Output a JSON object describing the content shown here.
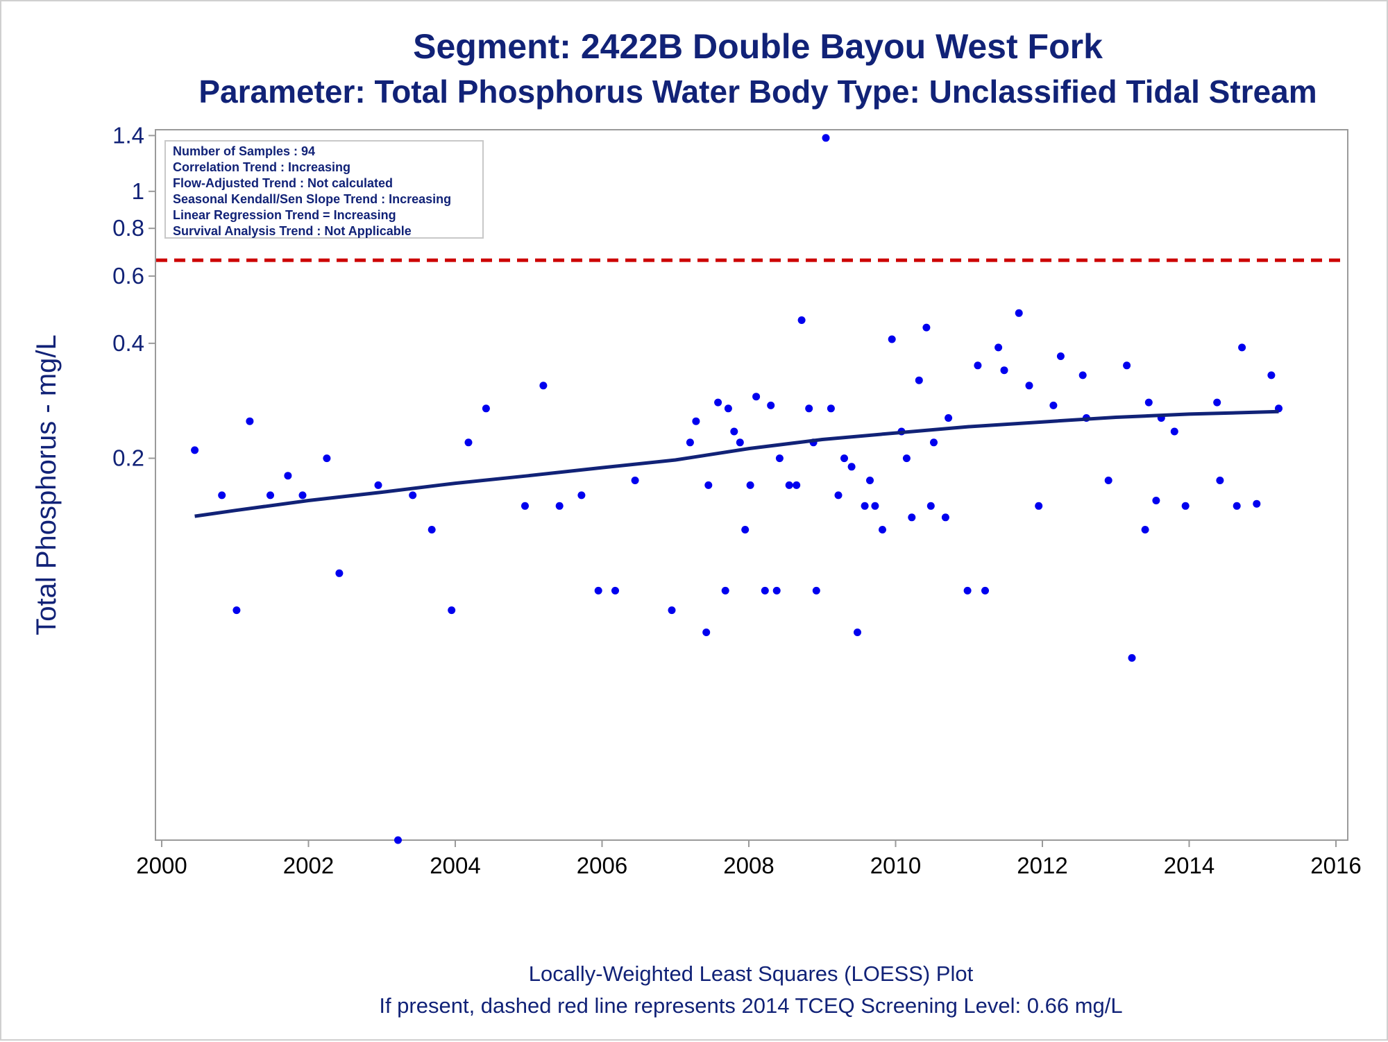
{
  "chart_data": {
    "type": "scatter",
    "title": "Segment: 2422B  Double Bayou West Fork",
    "subtitle": "Parameter: Total Phosphorus   Water Body Type: Unclassified Tidal Stream",
    "xlabel": "",
    "ylabel": "Total Phosphorus - mg/L",
    "xlim": [
      2000,
      2016
    ],
    "ylim": [
      0.02,
      1.45
    ],
    "yscale": "log",
    "xticks": [
      2000,
      2002,
      2004,
      2006,
      2008,
      2010,
      2012,
      2014,
      2016
    ],
    "yticks": [
      0.2,
      0.4,
      0.6,
      0.8,
      1,
      1.4
    ],
    "ytick_labels": [
      "0.2",
      "0.4",
      "0.6",
      "0.8",
      "1",
      "1.4"
    ],
    "grid": false,
    "colors": {
      "points": "#0000ee",
      "trend": "#112277",
      "screening": "#cc0000",
      "text": "#112277"
    },
    "info_box": {
      "placement": "top-left",
      "lines": [
        "Number of Samples : 94",
        "Correlation Trend : Increasing",
        "Flow-Adjusted Trend : Not calculated",
        "Seasonal Kendall/Sen Slope Trend : Increasing",
        "Linear Regression Trend = Increasing",
        "Survival Analysis Trend : Not Applicable"
      ]
    },
    "screening_level": {
      "y": 0.66,
      "style": "dashed"
    },
    "footnotes": [
      "Locally-Weighted Least Squares (LOESS) Plot",
      "If present, dashed red line represents 2014 TCEQ Screening Level: 0.66 mg/L"
    ],
    "points": [
      {
        "x": 2000.45,
        "y": 0.21
      },
      {
        "x": 2000.82,
        "y": 0.16
      },
      {
        "x": 2001.02,
        "y": 0.08
      },
      {
        "x": 2001.2,
        "y": 0.25
      },
      {
        "x": 2001.48,
        "y": 0.16
      },
      {
        "x": 2001.72,
        "y": 0.18
      },
      {
        "x": 2001.92,
        "y": 0.16
      },
      {
        "x": 2002.25,
        "y": 0.2
      },
      {
        "x": 2002.42,
        "y": 0.1
      },
      {
        "x": 2002.95,
        "y": 0.17
      },
      {
        "x": 2003.22,
        "y": 0.02
      },
      {
        "x": 2003.42,
        "y": 0.16
      },
      {
        "x": 2003.68,
        "y": 0.13
      },
      {
        "x": 2003.95,
        "y": 0.08
      },
      {
        "x": 2004.18,
        "y": 0.22
      },
      {
        "x": 2004.42,
        "y": 0.27
      },
      {
        "x": 2004.95,
        "y": 0.15
      },
      {
        "x": 2005.2,
        "y": 0.31
      },
      {
        "x": 2005.42,
        "y": 0.15
      },
      {
        "x": 2005.72,
        "y": 0.16
      },
      {
        "x": 2005.95,
        "y": 0.09
      },
      {
        "x": 2006.18,
        "y": 0.09
      },
      {
        "x": 2006.45,
        "y": 0.175
      },
      {
        "x": 2006.95,
        "y": 0.08
      },
      {
        "x": 2007.2,
        "y": 0.22
      },
      {
        "x": 2007.28,
        "y": 0.25
      },
      {
        "x": 2007.42,
        "y": 0.07
      },
      {
        "x": 2007.45,
        "y": 0.17
      },
      {
        "x": 2007.58,
        "y": 0.28
      },
      {
        "x": 2007.68,
        "y": 0.09
      },
      {
        "x": 2007.72,
        "y": 0.27
      },
      {
        "x": 2007.8,
        "y": 0.235
      },
      {
        "x": 2007.88,
        "y": 0.22
      },
      {
        "x": 2007.95,
        "y": 0.13
      },
      {
        "x": 2008.02,
        "y": 0.17
      },
      {
        "x": 2008.1,
        "y": 0.29
      },
      {
        "x": 2008.22,
        "y": 0.09
      },
      {
        "x": 2008.3,
        "y": 0.275
      },
      {
        "x": 2008.38,
        "y": 0.09
      },
      {
        "x": 2008.42,
        "y": 0.2
      },
      {
        "x": 2008.55,
        "y": 0.17
      },
      {
        "x": 2008.65,
        "y": 0.17
      },
      {
        "x": 2008.72,
        "y": 0.46
      },
      {
        "x": 2008.82,
        "y": 0.27
      },
      {
        "x": 2008.88,
        "y": 0.22
      },
      {
        "x": 2008.92,
        "y": 0.09
      },
      {
        "x": 2009.05,
        "y": 1.38
      },
      {
        "x": 2009.12,
        "y": 0.27
      },
      {
        "x": 2009.22,
        "y": 0.16
      },
      {
        "x": 2009.3,
        "y": 0.2
      },
      {
        "x": 2009.4,
        "y": 0.19
      },
      {
        "x": 2009.48,
        "y": 0.07
      },
      {
        "x": 2009.58,
        "y": 0.15
      },
      {
        "x": 2009.65,
        "y": 0.175
      },
      {
        "x": 2009.72,
        "y": 0.15
      },
      {
        "x": 2009.82,
        "y": 0.13
      },
      {
        "x": 2009.95,
        "y": 0.41
      },
      {
        "x": 2010.08,
        "y": 0.235
      },
      {
        "x": 2010.15,
        "y": 0.2
      },
      {
        "x": 2010.22,
        "y": 0.14
      },
      {
        "x": 2010.32,
        "y": 0.32
      },
      {
        "x": 2010.42,
        "y": 0.44
      },
      {
        "x": 2010.48,
        "y": 0.15
      },
      {
        "x": 2010.52,
        "y": 0.22
      },
      {
        "x": 2010.68,
        "y": 0.14
      },
      {
        "x": 2010.72,
        "y": 0.255
      },
      {
        "x": 2010.98,
        "y": 0.09
      },
      {
        "x": 2011.12,
        "y": 0.35
      },
      {
        "x": 2011.22,
        "y": 0.09
      },
      {
        "x": 2011.4,
        "y": 0.39
      },
      {
        "x": 2011.48,
        "y": 0.34
      },
      {
        "x": 2011.68,
        "y": 0.48
      },
      {
        "x": 2011.82,
        "y": 0.31
      },
      {
        "x": 2011.95,
        "y": 0.15
      },
      {
        "x": 2012.15,
        "y": 0.275
      },
      {
        "x": 2012.25,
        "y": 0.37
      },
      {
        "x": 2012.55,
        "y": 0.33
      },
      {
        "x": 2012.6,
        "y": 0.255
      },
      {
        "x": 2012.9,
        "y": 0.175
      },
      {
        "x": 2013.15,
        "y": 0.35
      },
      {
        "x": 2013.22,
        "y": 0.06
      },
      {
        "x": 2013.4,
        "y": 0.13
      },
      {
        "x": 2013.45,
        "y": 0.28
      },
      {
        "x": 2013.55,
        "y": 0.155
      },
      {
        "x": 2013.62,
        "y": 0.255
      },
      {
        "x": 2013.8,
        "y": 0.235
      },
      {
        "x": 2013.95,
        "y": 0.15
      },
      {
        "x": 2014.38,
        "y": 0.28
      },
      {
        "x": 2014.42,
        "y": 0.175
      },
      {
        "x": 2014.65,
        "y": 0.15
      },
      {
        "x": 2014.72,
        "y": 0.39
      },
      {
        "x": 2014.92,
        "y": 0.152
      },
      {
        "x": 2015.12,
        "y": 0.33
      },
      {
        "x": 2015.22,
        "y": 0.27
      }
    ],
    "trend_line": [
      {
        "x": 2000.45,
        "y": 0.141
      },
      {
        "x": 2001.0,
        "y": 0.146
      },
      {
        "x": 2002.0,
        "y": 0.155
      },
      {
        "x": 2003.0,
        "y": 0.163
      },
      {
        "x": 2004.0,
        "y": 0.172
      },
      {
        "x": 2005.0,
        "y": 0.18
      },
      {
        "x": 2006.0,
        "y": 0.189
      },
      {
        "x": 2007.0,
        "y": 0.198
      },
      {
        "x": 2008.0,
        "y": 0.212
      },
      {
        "x": 2009.0,
        "y": 0.224
      },
      {
        "x": 2010.0,
        "y": 0.233
      },
      {
        "x": 2011.0,
        "y": 0.242
      },
      {
        "x": 2012.0,
        "y": 0.249
      },
      {
        "x": 2013.0,
        "y": 0.256
      },
      {
        "x": 2014.0,
        "y": 0.261
      },
      {
        "x": 2015.22,
        "y": 0.265
      }
    ]
  }
}
